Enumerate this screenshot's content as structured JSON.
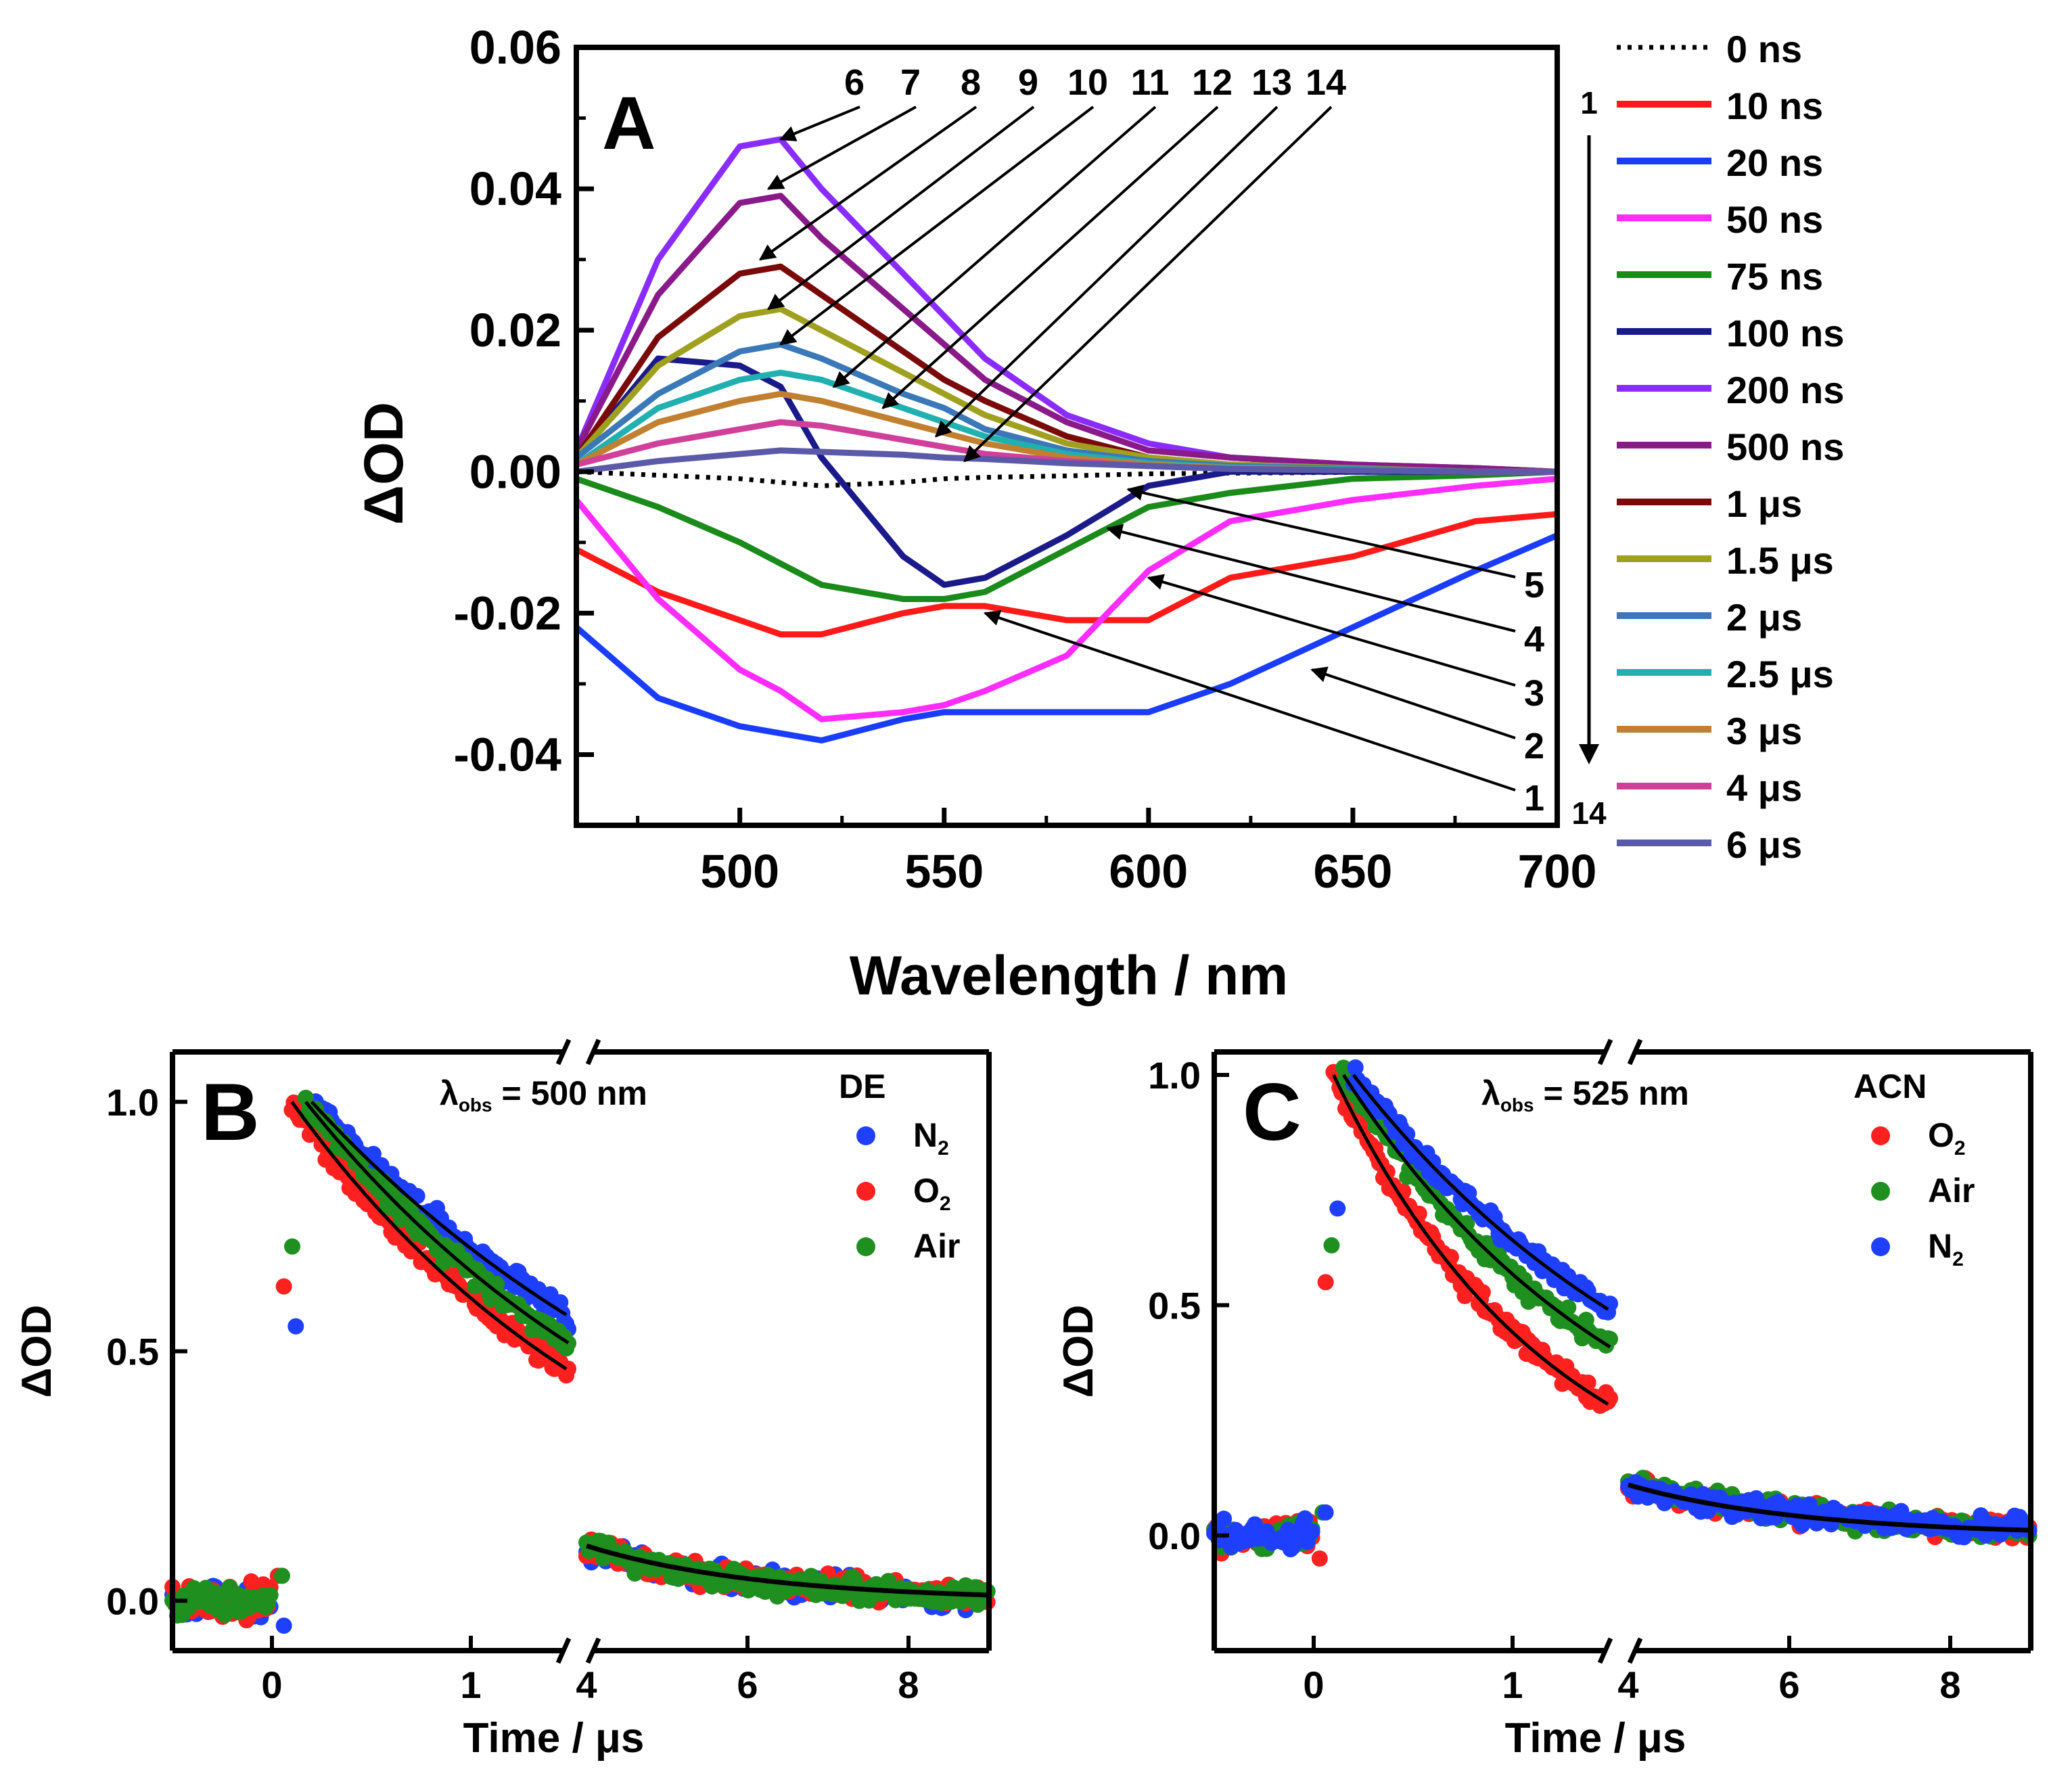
{
  "chart_data": [
    {
      "panel": "A",
      "type": "line",
      "xlabel": "Wavelength / nm",
      "ylabel": "ΔOD",
      "xlim": [
        460,
        700
      ],
      "ylim": [
        -0.05,
        0.06
      ],
      "xticks": [
        "500",
        "550",
        "600",
        "650",
        "700"
      ],
      "yticks": [
        "0.06",
        "0.04",
        "0.02",
        "0.00",
        "-0.02",
        "-0.04"
      ],
      "arrow_numbers": [
        "6",
        "7",
        "8",
        "9",
        "10",
        "11",
        "12",
        "13",
        "14"
      ],
      "lower_numbers": [
        "5",
        "4",
        "3",
        "2",
        "1"
      ],
      "legend_index_top": "1",
      "legend_index_bottom": "14",
      "x": [
        460,
        480,
        500,
        510,
        520,
        540,
        550,
        560,
        580,
        600,
        620,
        650,
        680,
        700
      ],
      "series": [
        {
          "name": "0 ns",
          "color": "#000000",
          "dashed": true,
          "values": [
            0.0,
            -0.0005,
            -0.001,
            -0.0015,
            -0.002,
            -0.0015,
            -0.001,
            -0.0008,
            -0.0006,
            -0.0003,
            -0.0002,
            -0.0001,
            0.0,
            0.0
          ]
        },
        {
          "name": "10 ns",
          "color": "#ff1a1a",
          "values": [
            -0.011,
            -0.017,
            -0.021,
            -0.023,
            -0.023,
            -0.02,
            -0.019,
            -0.019,
            -0.021,
            -0.021,
            -0.015,
            -0.012,
            -0.007,
            -0.006
          ]
        },
        {
          "name": "20 ns",
          "color": "#1a3cff",
          "values": [
            -0.022,
            -0.032,
            -0.036,
            -0.037,
            -0.038,
            -0.035,
            -0.034,
            -0.034,
            -0.034,
            -0.034,
            -0.03,
            -0.022,
            -0.014,
            -0.009
          ]
        },
        {
          "name": "50 ns",
          "color": "#ff2cff",
          "values": [
            -0.004,
            -0.018,
            -0.028,
            -0.031,
            -0.035,
            -0.034,
            -0.033,
            -0.031,
            -0.026,
            -0.014,
            -0.007,
            -0.004,
            -0.002,
            -0.001
          ]
        },
        {
          "name": "75 ns",
          "color": "#1a8a1a",
          "values": [
            -0.001,
            -0.005,
            -0.01,
            -0.013,
            -0.016,
            -0.018,
            -0.018,
            -0.017,
            -0.011,
            -0.005,
            -0.003,
            -0.001,
            -0.0005,
            0.0
          ]
        },
        {
          "name": "100 ns",
          "color": "#1a1a8a",
          "values": [
            0.002,
            0.016,
            0.015,
            0.012,
            0.002,
            -0.012,
            -0.016,
            -0.015,
            -0.009,
            -0.002,
            0.0,
            0.0,
            0.0,
            0.0
          ]
        },
        {
          "name": "200 ns",
          "color": "#8a2cff",
          "values": [
            0.003,
            0.03,
            0.046,
            0.047,
            0.04,
            0.028,
            0.022,
            0.016,
            0.008,
            0.004,
            0.002,
            0.001,
            0.0005,
            0.0
          ]
        },
        {
          "name": "500 ns",
          "color": "#8a1a8a",
          "values": [
            0.003,
            0.025,
            0.038,
            0.039,
            0.033,
            0.023,
            0.018,
            0.013,
            0.007,
            0.003,
            0.002,
            0.001,
            0.0005,
            0.0
          ]
        },
        {
          "name": "1 μs",
          "color": "#7a0a0a",
          "values": [
            0.002,
            0.019,
            0.028,
            0.029,
            0.025,
            0.017,
            0.013,
            0.01,
            0.005,
            0.002,
            0.001,
            0.0005,
            0.0,
            0.0
          ]
        },
        {
          "name": "1.5 μs",
          "color": "#a0a020",
          "values": [
            0.002,
            0.015,
            0.022,
            0.023,
            0.02,
            0.014,
            0.011,
            0.008,
            0.004,
            0.002,
            0.001,
            0.0005,
            0.0,
            0.0
          ]
        },
        {
          "name": "2 μs",
          "color": "#3a78b8",
          "values": [
            0.002,
            0.011,
            0.017,
            0.018,
            0.016,
            0.011,
            0.009,
            0.006,
            0.003,
            0.0015,
            0.0008,
            0.0004,
            0.0,
            0.0
          ]
        },
        {
          "name": "2.5 μs",
          "color": "#20b0b0",
          "values": [
            0.001,
            0.009,
            0.013,
            0.014,
            0.013,
            0.009,
            0.007,
            0.005,
            0.0025,
            0.0012,
            0.0006,
            0.0003,
            0.0,
            0.0
          ]
        },
        {
          "name": "3 μs",
          "color": "#c08030",
          "values": [
            0.001,
            0.007,
            0.01,
            0.011,
            0.01,
            0.007,
            0.0055,
            0.004,
            0.002,
            0.001,
            0.0005,
            0.0002,
            0.0,
            0.0
          ]
        },
        {
          "name": "4 μs",
          "color": "#d0409a",
          "values": [
            0.001,
            0.004,
            0.006,
            0.007,
            0.0065,
            0.0045,
            0.0035,
            0.0025,
            0.0015,
            0.0008,
            0.0004,
            0.0002,
            0.0,
            0.0
          ]
        },
        {
          "name": "6 μs",
          "color": "#5a5aa8",
          "values": [
            0.0,
            0.0015,
            0.0025,
            0.003,
            0.0028,
            0.0024,
            0.002,
            0.0018,
            0.0012,
            0.0008,
            0.0004,
            0.0002,
            0.0,
            0.0
          ]
        }
      ]
    },
    {
      "panel": "B",
      "type": "scatter",
      "xlabel": "Time / μs",
      "ylabel": "ΔOD",
      "annotation": "λ",
      "annotation_sub": "obs",
      "annotation_value": " = 500 nm",
      "legend_title": "DE",
      "xticks_left": [
        "0",
        "1"
      ],
      "xticks_right": [
        "4",
        "6",
        "8"
      ],
      "yticks": [
        "1.0",
        "0.5",
        "0.0"
      ],
      "ylim": [
        -0.1,
        1.1
      ],
      "series": [
        {
          "name": "N",
          "sub": "2",
          "color": "#1f3fff",
          "tau_early": 2.3,
          "tau_late": 2.0,
          "rise_time": 0.2
        },
        {
          "name": "O",
          "sub": "2",
          "color": "#ff2020",
          "tau_early": 1.8,
          "tau_late": 2.0,
          "rise_time": 0.1
        },
        {
          "name": "Air",
          "sub": "",
          "color": "#1f8f1f",
          "tau_early": 2.0,
          "tau_late": 2.0,
          "rise_time": 0.17
        }
      ]
    },
    {
      "panel": "C",
      "type": "scatter",
      "xlabel": "Time / μs",
      "ylabel": "ΔOD",
      "annotation": "λ",
      "annotation_sub": "obs",
      "annotation_value": " = 525 nm",
      "legend_title": "ACN",
      "xticks_left": [
        "0",
        "1"
      ],
      "xticks_right": [
        "4",
        "6",
        "8"
      ],
      "yticks": [
        "1.0",
        "0.5",
        "0.0"
      ],
      "ylim": [
        -0.25,
        1.05
      ],
      "series": [
        {
          "name": "O",
          "sub": "2",
          "color": "#ff2020",
          "tau_early": 1.1,
          "tau_late": 2.6,
          "rise_time": 0.1
        },
        {
          "name": "Air",
          "sub": "",
          "color": "#1f8f1f",
          "tau_early": 1.5,
          "tau_late": 2.6,
          "rise_time": 0.15
        },
        {
          "name": "N",
          "sub": "2",
          "color": "#1f3fff",
          "tau_early": 1.8,
          "tau_late": 2.6,
          "rise_time": 0.2
        }
      ]
    }
  ]
}
